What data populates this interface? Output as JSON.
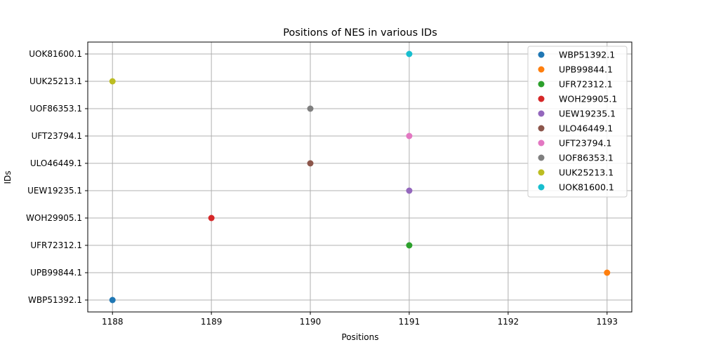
{
  "chart_data": {
    "type": "scatter",
    "title": "Positions of NES in various IDs",
    "xlabel": "Positions",
    "ylabel": "IDs",
    "xlim": [
      1187.75,
      1193.25
    ],
    "xticks": [
      1188,
      1189,
      1190,
      1191,
      1192,
      1193
    ],
    "categories": [
      "WBP51392.1",
      "UPB99844.1",
      "UFR72312.1",
      "WOH29905.1",
      "UEW19235.1",
      "ULO46449.1",
      "UFT23794.1",
      "UOF86353.1",
      "UUK25213.1",
      "UOK81600.1"
    ],
    "grid": true,
    "legend_position": "top-right",
    "series": [
      {
        "name": "WBP51392.1",
        "x": 1188,
        "y": "WBP51392.1",
        "color": "#1f77b4"
      },
      {
        "name": "UPB99844.1",
        "x": 1193,
        "y": "UPB99844.1",
        "color": "#ff7f0e"
      },
      {
        "name": "UFR72312.1",
        "x": 1191,
        "y": "UFR72312.1",
        "color": "#2ca02c"
      },
      {
        "name": "WOH29905.1",
        "x": 1189,
        "y": "WOH29905.1",
        "color": "#d62728"
      },
      {
        "name": "UEW19235.1",
        "x": 1191,
        "y": "UEW19235.1",
        "color": "#9467bd"
      },
      {
        "name": "ULO46449.1",
        "x": 1190,
        "y": "ULO46449.1",
        "color": "#8c564b"
      },
      {
        "name": "UFT23794.1",
        "x": 1191,
        "y": "UFT23794.1",
        "color": "#e377c2"
      },
      {
        "name": "UOF86353.1",
        "x": 1190,
        "y": "UOF86353.1",
        "color": "#7f7f7f"
      },
      {
        "name": "UUK25213.1",
        "x": 1188,
        "y": "UUK25213.1",
        "color": "#bcbd22"
      },
      {
        "name": "UOK81600.1",
        "x": 1191,
        "y": "UOK81600.1",
        "color": "#17becf"
      }
    ]
  }
}
